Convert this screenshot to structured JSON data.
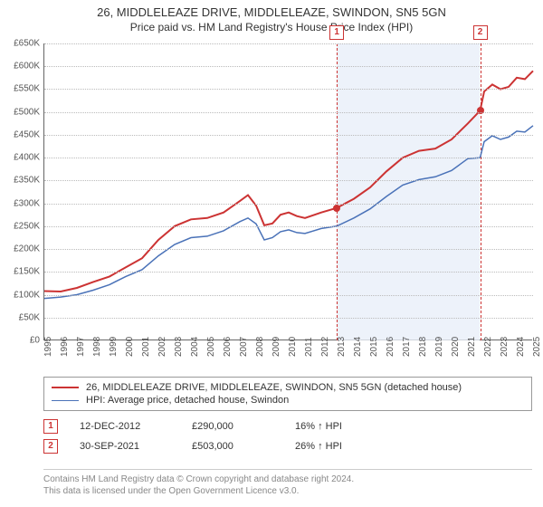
{
  "title": "26, MIDDLELEAZE DRIVE, MIDDLELEAZE, SWINDON, SN5 5GN",
  "subtitle": "Price paid vs. HM Land Registry's House Price Index (HPI)",
  "chart": {
    "type": "line",
    "background_color": "#ffffff",
    "grid_color": "#bbbbbb",
    "axis_color": "#666666",
    "xlim_years": [
      1995,
      2025
    ],
    "ylim": [
      0,
      650000
    ],
    "ytick_step": 50000,
    "ytick_labels": [
      "£0",
      "£50K",
      "£100K",
      "£150K",
      "£200K",
      "£250K",
      "£300K",
      "£350K",
      "£400K",
      "£450K",
      "£500K",
      "£550K",
      "£600K",
      "£650K"
    ],
    "xtick_years": [
      1995,
      1996,
      1997,
      1998,
      1999,
      2000,
      2001,
      2002,
      2003,
      2004,
      2005,
      2006,
      2007,
      2008,
      2009,
      2010,
      2011,
      2012,
      2013,
      2014,
      2015,
      2016,
      2017,
      2018,
      2019,
      2020,
      2021,
      2022,
      2023,
      2024,
      2025
    ],
    "shade_region_years": [
      2012.95,
      2021.75
    ],
    "shade_color": "#e9eff9",
    "series": [
      {
        "key": "property",
        "label": "26, MIDDLELEAZE DRIVE, MIDDLELEAZE, SWINDON, SN5 5GN (detached house)",
        "color": "#cc3333",
        "line_width": 2,
        "points": [
          [
            1995,
            108000
          ],
          [
            1996,
            107000
          ],
          [
            1997,
            115000
          ],
          [
            1998,
            128000
          ],
          [
            1999,
            140000
          ],
          [
            2000,
            160000
          ],
          [
            2001,
            180000
          ],
          [
            2002,
            220000
          ],
          [
            2003,
            250000
          ],
          [
            2004,
            265000
          ],
          [
            2005,
            268000
          ],
          [
            2006,
            280000
          ],
          [
            2007,
            305000
          ],
          [
            2007.5,
            318000
          ],
          [
            2008,
            295000
          ],
          [
            2008.5,
            252000
          ],
          [
            2009,
            256000
          ],
          [
            2009.5,
            275000
          ],
          [
            2010,
            280000
          ],
          [
            2010.5,
            272000
          ],
          [
            2011,
            268000
          ],
          [
            2012,
            280000
          ],
          [
            2012.95,
            290000
          ],
          [
            2014,
            310000
          ],
          [
            2015,
            335000
          ],
          [
            2016,
            370000
          ],
          [
            2017,
            400000
          ],
          [
            2018,
            415000
          ],
          [
            2019,
            420000
          ],
          [
            2020,
            440000
          ],
          [
            2021,
            475000
          ],
          [
            2021.75,
            503000
          ],
          [
            2022,
            545000
          ],
          [
            2022.5,
            560000
          ],
          [
            2023,
            550000
          ],
          [
            2023.5,
            555000
          ],
          [
            2024,
            575000
          ],
          [
            2024.5,
            572000
          ],
          [
            2025,
            590000
          ]
        ]
      },
      {
        "key": "hpi",
        "label": "HPI: Average price, detached house, Swindon",
        "color": "#4a72b8",
        "line_width": 1.5,
        "points": [
          [
            1995,
            92000
          ],
          [
            1996,
            95000
          ],
          [
            1997,
            100000
          ],
          [
            1998,
            110000
          ],
          [
            1999,
            122000
          ],
          [
            2000,
            140000
          ],
          [
            2001,
            155000
          ],
          [
            2002,
            185000
          ],
          [
            2003,
            210000
          ],
          [
            2004,
            225000
          ],
          [
            2005,
            228000
          ],
          [
            2006,
            240000
          ],
          [
            2007,
            260000
          ],
          [
            2007.5,
            268000
          ],
          [
            2008,
            255000
          ],
          [
            2008.5,
            220000
          ],
          [
            2009,
            225000
          ],
          [
            2009.5,
            238000
          ],
          [
            2010,
            242000
          ],
          [
            2010.5,
            236000
          ],
          [
            2011,
            234000
          ],
          [
            2012,
            245000
          ],
          [
            2012.95,
            250000
          ],
          [
            2014,
            268000
          ],
          [
            2015,
            288000
          ],
          [
            2016,
            315000
          ],
          [
            2017,
            340000
          ],
          [
            2018,
            352000
          ],
          [
            2019,
            358000
          ],
          [
            2020,
            372000
          ],
          [
            2021,
            398000
          ],
          [
            2021.75,
            400000
          ],
          [
            2022,
            435000
          ],
          [
            2022.5,
            448000
          ],
          [
            2023,
            440000
          ],
          [
            2023.5,
            445000
          ],
          [
            2024,
            458000
          ],
          [
            2024.5,
            456000
          ],
          [
            2025,
            470000
          ]
        ]
      }
    ],
    "event_markers": [
      {
        "id": "1",
        "year": 2012.95,
        "value": 290000
      },
      {
        "id": "2",
        "year": 2021.75,
        "value": 503000
      }
    ],
    "marker_dot_color": "#cc3333",
    "marker_badge_border": "#cc3333"
  },
  "legend": {
    "series1_label": "26, MIDDLELEAZE DRIVE, MIDDLELEAZE, SWINDON, SN5 5GN (detached house)",
    "series2_label": "HPI: Average price, detached house, Swindon"
  },
  "events": [
    {
      "id": "1",
      "date": "12-DEC-2012",
      "price": "£290,000",
      "note": "16% ↑ HPI"
    },
    {
      "id": "2",
      "date": "30-SEP-2021",
      "price": "£503,000",
      "note": "26% ↑ HPI"
    }
  ],
  "footnote_line1": "Contains HM Land Registry data © Crown copyright and database right 2024.",
  "footnote_line2": "This data is licensed under the Open Government Licence v3.0."
}
